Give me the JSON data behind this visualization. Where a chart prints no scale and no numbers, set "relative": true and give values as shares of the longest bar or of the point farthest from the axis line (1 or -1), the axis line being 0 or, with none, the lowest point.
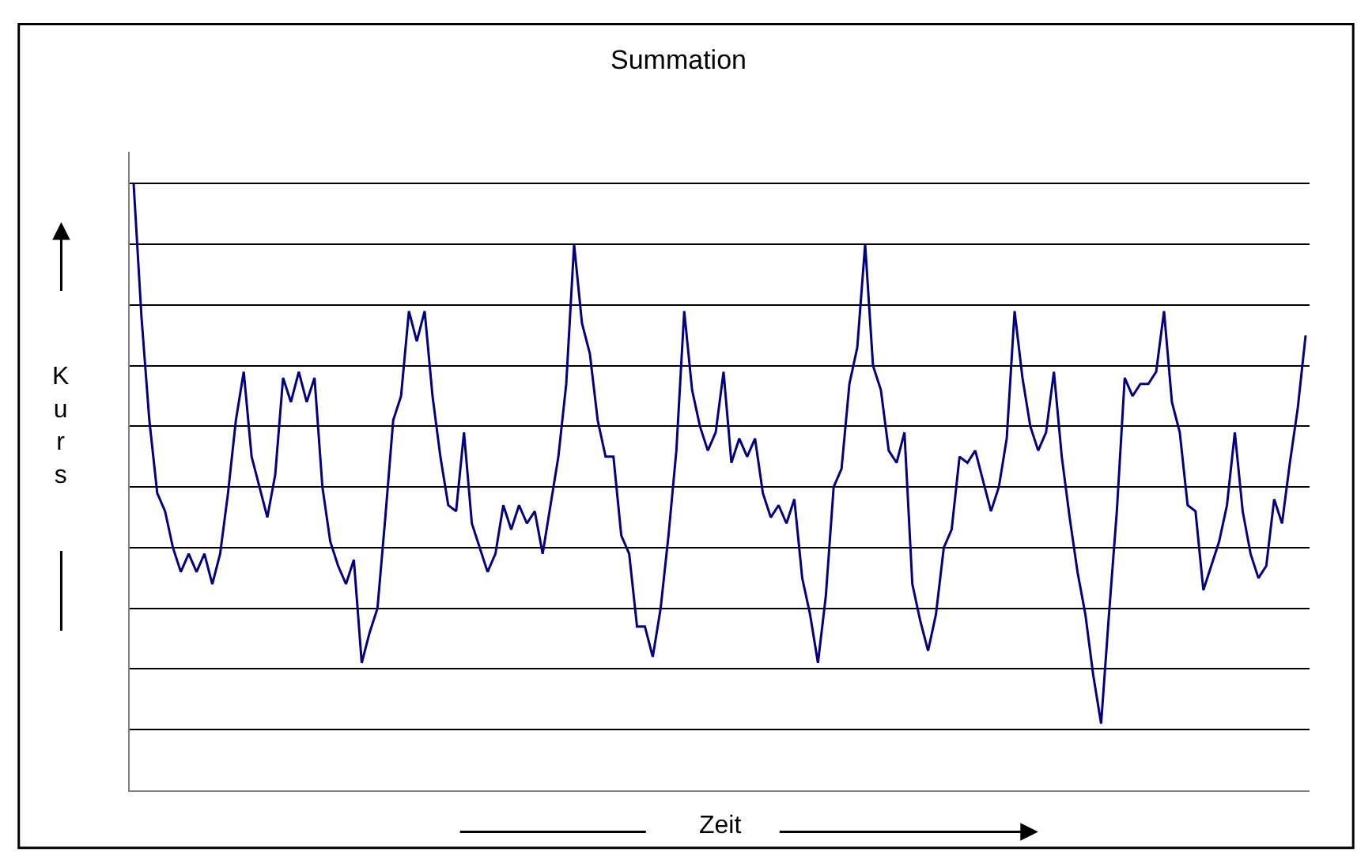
{
  "chart_data": {
    "type": "line",
    "title": "Summation",
    "xlabel": "Zeit",
    "ylabel": "Kurs",
    "relative": true,
    "grid": "y",
    "marker": "none",
    "line_style": "solid",
    "categories": [
      null,
      null,
      null,
      null,
      null,
      null,
      null,
      null,
      null,
      null,
      null,
      null,
      null,
      null,
      null,
      null,
      null,
      null,
      null,
      null,
      null,
      null,
      null,
      null,
      null,
      null,
      null,
      null,
      null,
      null,
      null,
      null,
      null,
      null,
      null,
      null,
      null,
      null,
      null,
      null,
      null,
      null,
      null,
      null,
      null,
      null,
      null,
      null,
      null,
      null,
      null,
      null,
      null,
      null,
      null,
      null,
      null,
      null,
      null,
      null,
      null,
      null,
      null,
      null,
      null,
      null,
      null,
      null,
      null,
      null,
      null,
      null,
      null,
      null,
      null,
      null,
      null,
      null,
      null,
      null,
      null,
      null,
      null,
      null,
      null,
      null,
      null,
      null,
      null,
      null,
      null,
      null,
      null,
      null,
      null,
      null,
      null,
      null,
      null,
      null,
      null,
      null,
      null,
      null,
      null,
      null,
      null,
      null,
      null,
      null,
      null,
      null,
      null,
      null,
      null,
      null,
      null,
      null,
      null,
      null,
      null,
      null,
      null,
      null,
      null,
      null,
      null,
      null,
      null,
      null,
      null,
      null,
      null,
      null,
      null,
      null,
      null,
      null,
      null,
      null,
      null,
      null,
      null,
      null,
      null,
      null,
      null,
      null,
      null,
      null
    ],
    "series": [
      {
        "color": "#000080",
        "values": [
          1.0,
          0.78,
          0.61,
          0.49,
          0.46,
          0.4,
          0.36,
          0.39,
          0.36,
          0.39,
          0.34,
          0.39,
          0.49,
          0.61,
          0.69,
          0.55,
          0.5,
          0.45,
          0.52,
          0.68,
          0.64,
          0.69,
          0.64,
          0.68,
          0.5,
          0.41,
          0.37,
          0.34,
          0.38,
          0.21,
          0.26,
          0.3,
          0.45,
          0.61,
          0.65,
          0.79,
          0.74,
          0.79,
          0.65,
          0.55,
          0.47,
          0.46,
          0.59,
          0.44,
          0.4,
          0.36,
          0.39,
          0.47,
          0.43,
          0.47,
          0.44,
          0.46,
          0.39,
          0.47,
          0.55,
          0.67,
          0.9,
          0.77,
          0.72,
          0.61,
          0.55,
          0.55,
          0.42,
          0.39,
          0.27,
          0.27,
          0.22,
          0.3,
          0.42,
          0.56,
          0.79,
          0.66,
          0.6,
          0.56,
          0.59,
          0.69,
          0.54,
          0.58,
          0.55,
          0.58,
          0.49,
          0.45,
          0.47,
          0.44,
          0.48,
          0.35,
          0.29,
          0.21,
          0.32,
          0.5,
          0.53,
          0.67,
          0.73,
          0.9,
          0.7,
          0.66,
          0.56,
          0.54,
          0.59,
          0.34,
          0.28,
          0.23,
          0.29,
          0.4,
          0.43,
          0.55,
          0.54,
          0.56,
          0.51,
          0.46,
          0.5,
          0.58,
          0.79,
          0.68,
          0.6,
          0.56,
          0.59,
          0.69,
          0.55,
          0.45,
          0.36,
          0.29,
          0.19,
          0.11,
          0.29,
          0.46,
          0.68,
          0.65,
          0.67,
          0.67,
          0.69,
          0.79,
          0.64,
          0.59,
          0.47,
          0.46,
          0.33,
          0.37,
          0.41,
          0.47,
          0.59,
          0.46,
          0.39,
          0.35,
          0.37,
          0.48,
          0.44,
          0.54,
          0.63,
          0.75
        ]
      }
    ]
  }
}
